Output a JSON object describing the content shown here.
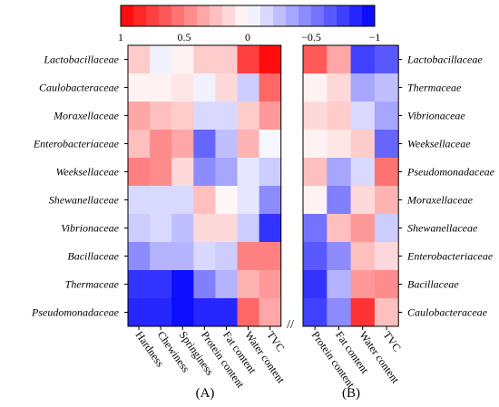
{
  "chart_data": {
    "type": "heatmap",
    "colorbar": {
      "ticks": [
        {
          "value": 1,
          "label": "1"
        },
        {
          "value": 0.5,
          "label": "0.5"
        },
        {
          "value": 0,
          "label": "0"
        },
        {
          "value": -0.5,
          "label": "−0.5"
        },
        {
          "value": -1,
          "label": "−1"
        }
      ],
      "range": [
        1,
        -1
      ],
      "colors": {
        "positive": "#ff0000",
        "zero": "#ffffff",
        "negative": "#0000ff"
      }
    },
    "panels": [
      {
        "label": "(A)",
        "rows": [
          "Lactobacillaceae",
          "Caulobacteraceae",
          "Moraxellaceae",
          "Enterobacteriaceae",
          "Weeksellaceae",
          "Shewanellaceae",
          "Vibrionaceae",
          "Bacillaceae",
          "Thermaceae",
          "Pseudomonadaceae"
        ],
        "columns": [
          "Hardness",
          "Chewiness",
          "Springiness",
          "Protein content",
          "Fat content",
          "Water content",
          "TVC"
        ],
        "values": [
          [
            0.2,
            -0.05,
            0.05,
            0.2,
            0.2,
            0.75,
            0.95
          ],
          [
            0.05,
            0.05,
            0.1,
            -0.05,
            0.15,
            -0.2,
            0.6
          ],
          [
            0.35,
            0.25,
            0.2,
            -0.15,
            -0.15,
            0.2,
            0.4
          ],
          [
            0.25,
            0.45,
            0.35,
            -0.6,
            -0.25,
            0.3,
            -0.03
          ],
          [
            0.5,
            0.45,
            0.15,
            -0.45,
            -0.35,
            -0.1,
            -0.2
          ],
          [
            -0.15,
            -0.15,
            -0.15,
            0.25,
            0.03,
            -0.1,
            -0.45
          ],
          [
            -0.2,
            -0.15,
            -0.25,
            0.15,
            0.15,
            -0.2,
            -0.8
          ],
          [
            -0.45,
            -0.3,
            -0.3,
            -0.15,
            -0.2,
            0.5,
            0.5
          ],
          [
            -0.8,
            -0.8,
            -0.95,
            -0.5,
            -0.3,
            0.3,
            0.4
          ],
          [
            -0.85,
            -0.85,
            -0.95,
            -0.85,
            -0.85,
            0.6,
            0.35
          ]
        ]
      },
      {
        "label": "(B)",
        "rows": [
          "Lactobacillaceae",
          "Thermaceae",
          "Vibrionaceae",
          "Weeksellaceae",
          "Pseudomonadaceae",
          "Moraxellaceae",
          "Shewanellaceae",
          "Enterobacteriaceae",
          "Bacillaceae",
          "Caulobacteraceae"
        ],
        "columns": [
          "Protein content",
          "Fat content",
          "Water content",
          "TVC"
        ],
        "values": [
          [
            0.65,
            0.35,
            -0.75,
            -0.65
          ],
          [
            0.05,
            0.15,
            -0.35,
            -0.25
          ],
          [
            0.15,
            0.2,
            -0.15,
            -0.35
          ],
          [
            0.05,
            0.1,
            0.2,
            -0.6
          ],
          [
            0.25,
            -0.35,
            -0.15,
            0.55
          ],
          [
            0.05,
            -0.5,
            0.15,
            0.3
          ],
          [
            -0.55,
            0.25,
            0.4,
            -0.2
          ],
          [
            -0.65,
            -0.45,
            0.25,
            0.15
          ],
          [
            -0.8,
            -0.3,
            0.4,
            0.45
          ],
          [
            -0.75,
            -0.45,
            0.8,
            0.25
          ]
        ]
      }
    ],
    "break_marker": "//"
  }
}
